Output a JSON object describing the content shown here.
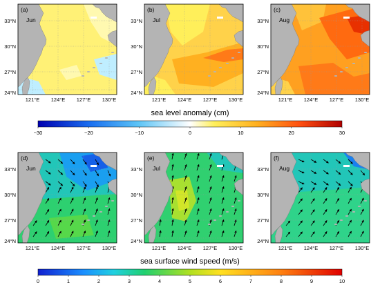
{
  "top_row": {
    "colorbar_title": "sea level anomaly (cm)",
    "colorbar_ticks": [
      "−30",
      "−20",
      "−10",
      "0",
      "10",
      "20",
      "30"
    ],
    "panels": [
      {
        "letter": "(a)",
        "month": "Jun",
        "level": "low"
      },
      {
        "letter": "(b)",
        "month": "Jul",
        "level": "mid"
      },
      {
        "letter": "(c)",
        "month": "Aug",
        "level": "high"
      }
    ],
    "colors": {
      "neg_deep": "#1010c0",
      "neg_mid": "#3aa7f0",
      "neg_light": "#b8ecff",
      "zero": "#ffffff",
      "pos_light": "#ffef5a",
      "pos_mid": "#ffb020",
      "pos_high": "#ff6010",
      "pos_deep": "#c00000"
    }
  },
  "bottom_row": {
    "colorbar_title": "sea surface wind speed (m/s)",
    "colorbar_ticks": [
      "0",
      "1",
      "2",
      "3",
      "4",
      "5",
      "6",
      "7",
      "8",
      "9",
      "10"
    ],
    "panels": [
      {
        "letter": "(d)",
        "month": "Jun"
      },
      {
        "letter": "(e)",
        "month": "Jul"
      },
      {
        "letter": "(f)",
        "month": "Aug"
      }
    ]
  },
  "lat_labels": [
    "33°N",
    "30°N",
    "27°N",
    "24°N"
  ],
  "lon_labels": [
    "121°E",
    "124°E",
    "127°E",
    "130°E"
  ],
  "land_color": "#b4b4b4"
}
